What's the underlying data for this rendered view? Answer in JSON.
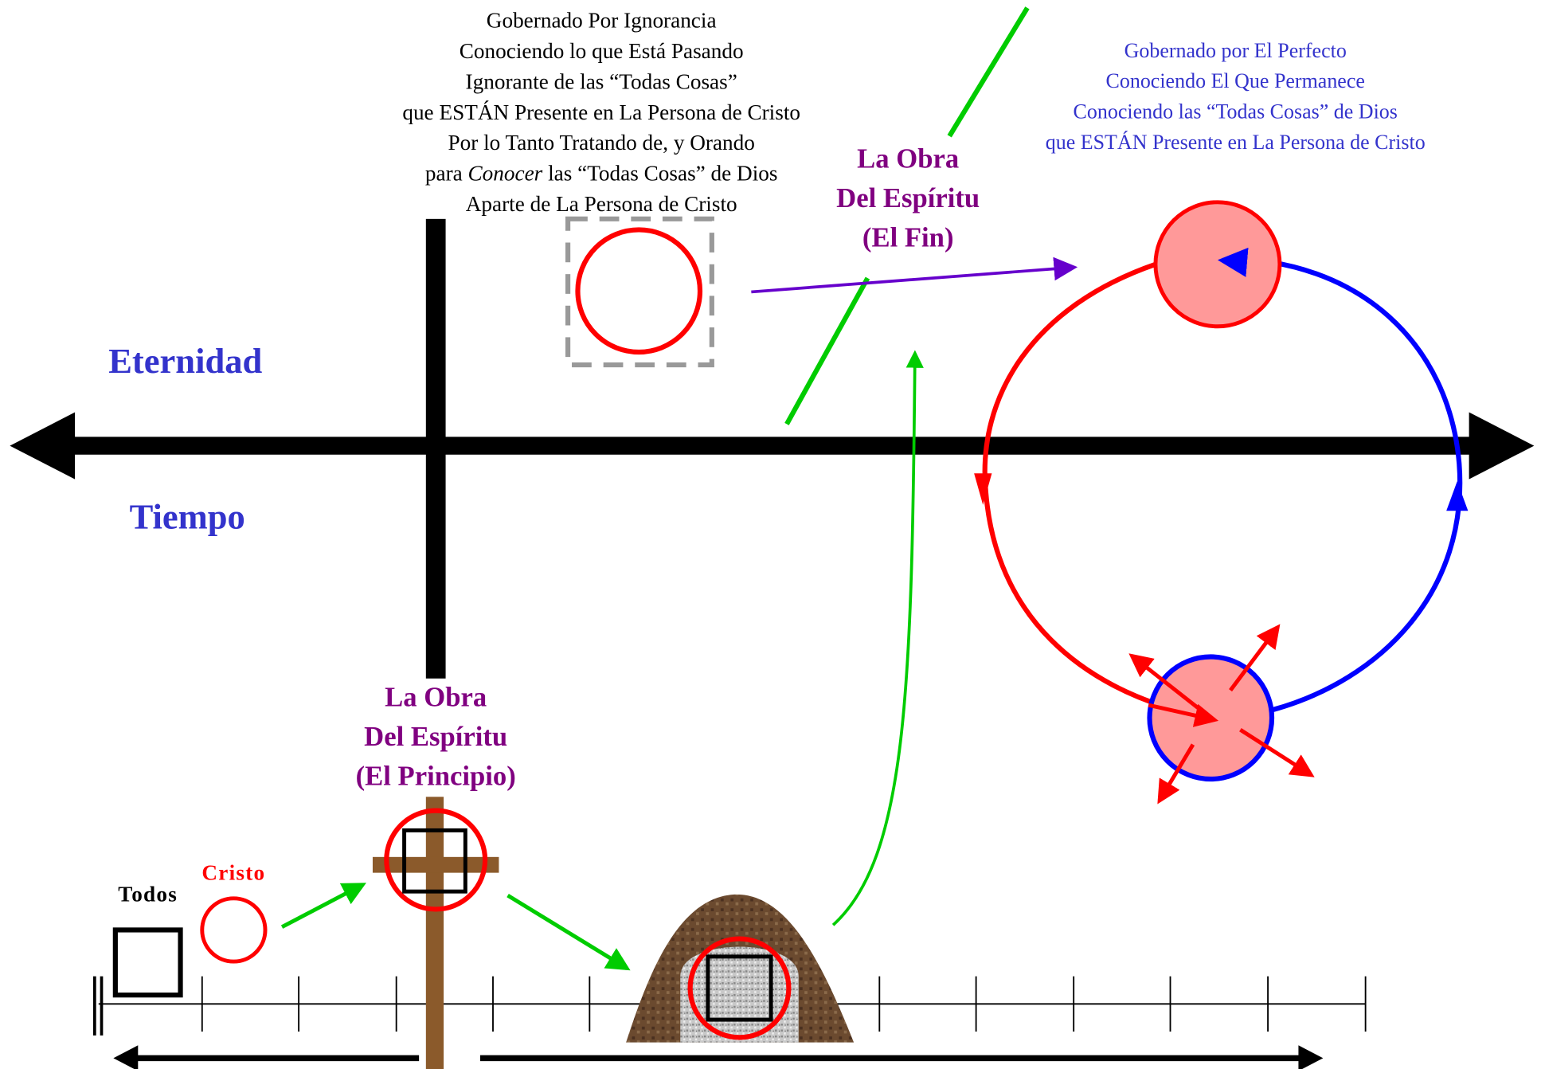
{
  "left_block": {
    "lines": [
      "Gobernado Por Ignorancia",
      "Conociendo lo que Está Pasando",
      "Ignorante de las “Todas Cosas”",
      "que ESTÁN Presente en La Persona de Cristo",
      "Por lo Tanto Tratando de, y Orando"
    ],
    "italic_line": [
      "para ",
      "Conocer",
      " las “Todas Cosas” de Dios"
    ],
    "last_line": "Aparte de La Persona de Cristo"
  },
  "right_block": {
    "lines": [
      "Gobernado por El Perfecto",
      "Conociendo El Que Permanece",
      "Conociendo las “Todas Cosas” de Dios",
      "que ESTÁN Presente en La Persona de Cristo"
    ]
  },
  "axis_labels": {
    "eternity": "Eternidad",
    "time": "Tiempo"
  },
  "work_end": [
    "La Obra",
    "Del Espíritu",
    "(El Fin)"
  ],
  "work_beginning": [
    "La Obra",
    "Del Espíritu",
    "(El Principio)"
  ],
  "todos": "Todos",
  "cristo": "Cristo"
}
